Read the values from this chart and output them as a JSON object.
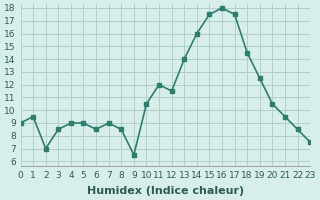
{
  "x": [
    0,
    1,
    2,
    3,
    4,
    5,
    6,
    7,
    8,
    9,
    10,
    11,
    12,
    13,
    14,
    15,
    16,
    17,
    18,
    19,
    20,
    21,
    22,
    23
  ],
  "y": [
    9,
    9.5,
    7,
    8.5,
    9,
    9,
    8.5,
    9,
    8.5,
    6.5,
    10.5,
    12,
    11.5,
    14,
    16,
    17.5,
    18,
    17.5,
    14.5,
    12.5,
    10.5,
    9.5,
    8.5,
    7.5
  ],
  "line_color": "#2e7d6e",
  "marker_color": "#2e7d6e",
  "bg_color": "#d8eeeb",
  "grid_color": "#b0d0cc",
  "xlabel": "Humidex (Indice chaleur)",
  "ylim_min": 6,
  "ylim_max": 18,
  "xlim_min": 0,
  "xlim_max": 23,
  "yticks": [
    6,
    7,
    8,
    9,
    10,
    11,
    12,
    13,
    14,
    15,
    16,
    17,
    18
  ],
  "xticks": [
    0,
    1,
    2,
    3,
    4,
    5,
    6,
    7,
    8,
    9,
    10,
    11,
    12,
    13,
    14,
    15,
    16,
    17,
    18,
    19,
    20,
    21,
    22,
    23
  ],
  "tick_label_color": "#2e5c52",
  "xlabel_fontsize": 8,
  "tick_fontsize": 6.5
}
